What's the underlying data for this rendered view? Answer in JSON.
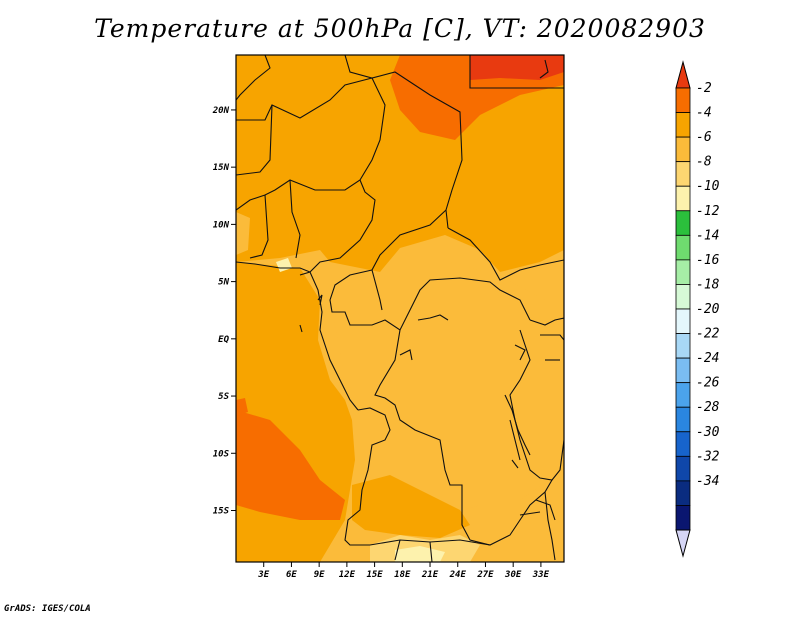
{
  "title": "Temperature at 500hPa [C], VT: 2020082903",
  "credit": "GrADS: IGES/COLA",
  "map": {
    "lon_range": [
      0,
      35.5
    ],
    "lat_range": [
      -19.5,
      24.8
    ],
    "lon_ticks": [
      "3E",
      "6E",
      "9E",
      "12E",
      "15E",
      "18E",
      "21E",
      "24E",
      "27E",
      "30E",
      "33E"
    ],
    "lat_ticks": [
      "20N",
      "15N",
      "10N",
      "5N",
      "EQ",
      "5S",
      "10S",
      "15S"
    ]
  },
  "colorbar": {
    "labels": [
      "-2",
      "-4",
      "-6",
      "-8",
      "-10",
      "-12",
      "-14",
      "-16",
      "-18",
      "-20",
      "-22",
      "-24",
      "-26",
      "-28",
      "-30",
      "-32",
      "-34"
    ],
    "colors": [
      "#e83a10",
      "#f76d00",
      "#f7a400",
      "#fbbb3a",
      "#fdd671",
      "#fdf2ad",
      "#2bbf3c",
      "#6fdb6f",
      "#a6eea6",
      "#d6f9d6",
      "#e4f7fc",
      "#a8d8f6",
      "#7abdf2",
      "#4ba3ec",
      "#2a86e0",
      "#1764cc",
      "#0f47aa",
      "#0a2c80",
      "#0a1670",
      "#d6d6f6"
    ]
  }
}
